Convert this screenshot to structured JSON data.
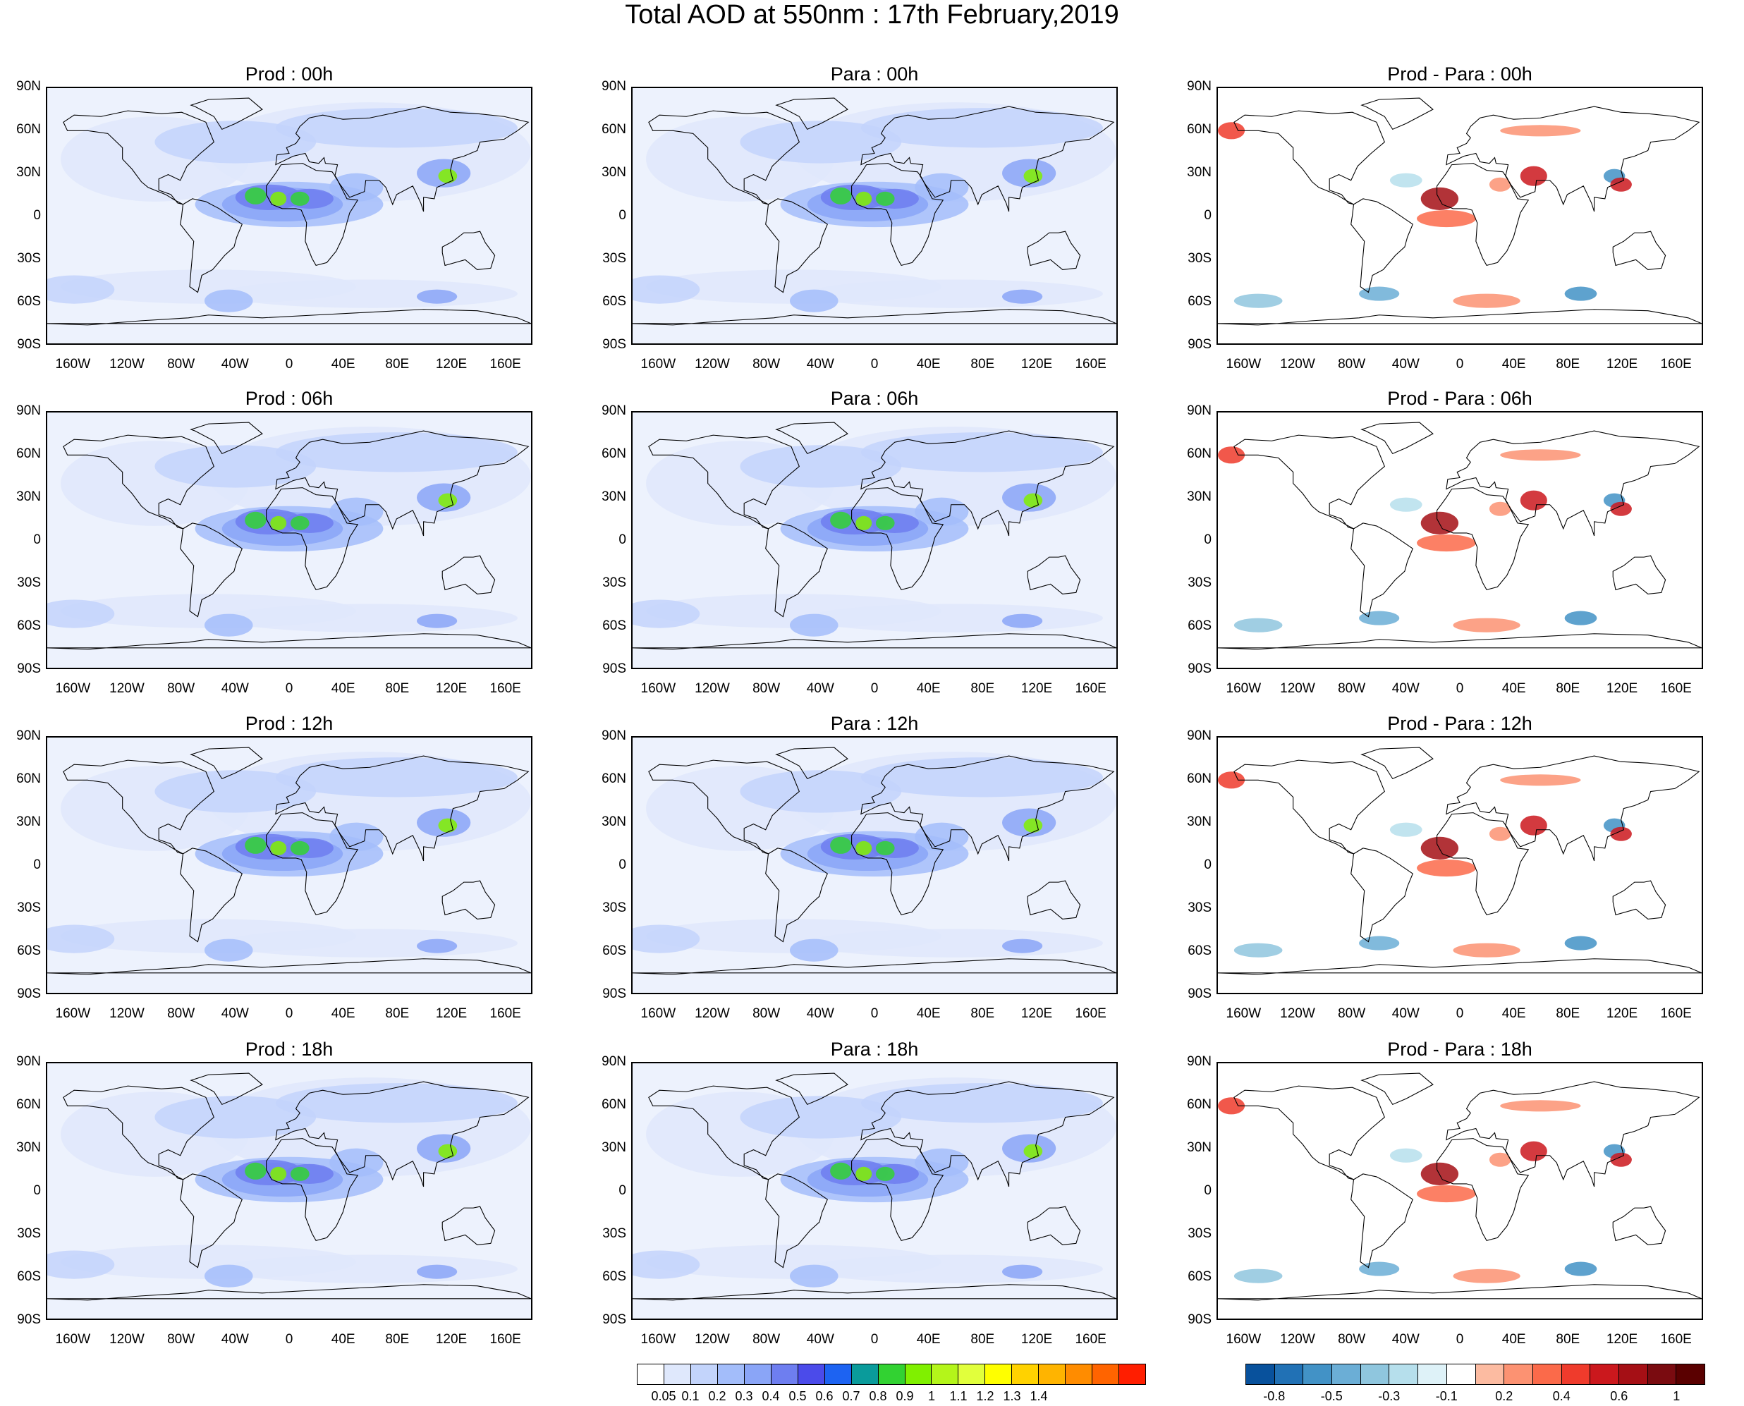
{
  "title": "Total AOD at 550nm : 17th February,2019",
  "lat_labels": [
    "90N",
    "60N",
    "30N",
    "0",
    "30S",
    "60S",
    "90S"
  ],
  "lon_labels": [
    "160W",
    "120W",
    "80W",
    "40W",
    "0",
    "40E",
    "80E",
    "120E",
    "160E"
  ],
  "panels": [
    {
      "title": "Prod : 00h",
      "kind": "aod",
      "hour": "00h"
    },
    {
      "title": "Para : 00h",
      "kind": "aod",
      "hour": "00h"
    },
    {
      "title": "Prod - Para : 00h",
      "kind": "diff",
      "hour": "00h"
    },
    {
      "title": "Prod : 06h",
      "kind": "aod",
      "hour": "06h"
    },
    {
      "title": "Para : 06h",
      "kind": "aod",
      "hour": "06h"
    },
    {
      "title": "Prod - Para : 06h",
      "kind": "diff",
      "hour": "06h"
    },
    {
      "title": "Prod : 12h",
      "kind": "aod",
      "hour": "12h"
    },
    {
      "title": "Para : 12h",
      "kind": "aod",
      "hour": "12h"
    },
    {
      "title": "Prod - Para : 12h",
      "kind": "diff",
      "hour": "12h"
    },
    {
      "title": "Prod : 18h",
      "kind": "aod",
      "hour": "18h"
    },
    {
      "title": "Para : 18h",
      "kind": "aod",
      "hour": "18h"
    },
    {
      "title": "Prod - Para : 18h",
      "kind": "diff",
      "hour": "18h"
    }
  ],
  "aod_colorbar": {
    "colors": [
      "#ffffff",
      "#dfe8fc",
      "#c3d4fb",
      "#a3bdfa",
      "#8aa5f7",
      "#6e7ef0",
      "#4b4bea",
      "#1d63f2",
      "#0a9b9b",
      "#32d232",
      "#80f000",
      "#b4f51a",
      "#e1ff3c",
      "#ffff00",
      "#ffd200",
      "#ffb400",
      "#ff8c00",
      "#ff6400",
      "#ff1e00"
    ],
    "labels": [
      "0.05",
      "0.1",
      "0.2",
      "0.3",
      "0.4",
      "0.5",
      "0.6",
      "0.7",
      "0.8",
      "0.9",
      "1",
      "1.1",
      "1.2",
      "1.3",
      "1.4"
    ]
  },
  "diff_colorbar": {
    "colors": [
      "#08519c",
      "#2171b5",
      "#4292c6",
      "#6baed6",
      "#8fc6de",
      "#b6dfec",
      "#def2f8",
      "#ffffff",
      "#fcbba1",
      "#fc9272",
      "#fb6a4a",
      "#ef3b2c",
      "#cb181d",
      "#a50f15",
      "#7a0b10",
      "#5a0000"
    ],
    "labels": [
      "-0.8",
      "-0.5",
      "-0.3",
      "-0.1",
      "0.2",
      "0.4",
      "0.6",
      "1"
    ]
  }
}
